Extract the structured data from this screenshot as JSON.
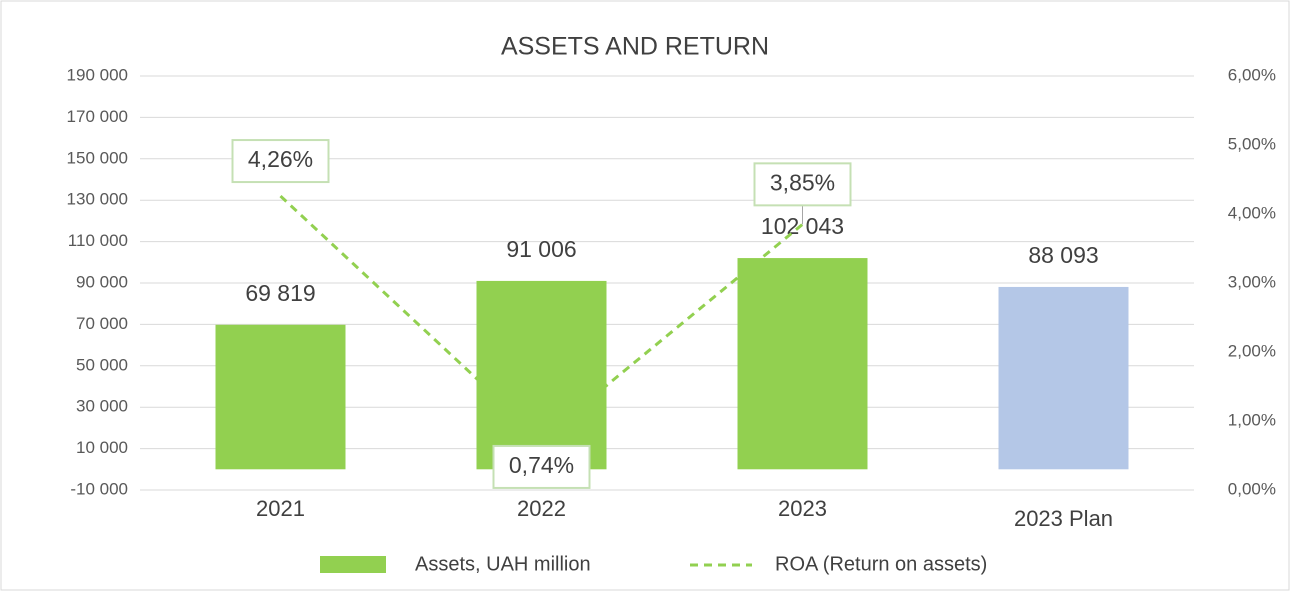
{
  "chart_data": {
    "type": "bar",
    "title": "ASSETS AND RETURN",
    "categories": [
      "2021",
      "2022",
      "2023",
      "2023 Plan"
    ],
    "series": [
      {
        "name": "Assets, UAH million",
        "type": "bar",
        "color": "#92d050",
        "colors": [
          "#92d050",
          "#92d050",
          "#92d050",
          "#b4c7e7"
        ],
        "values": [
          69819,
          91006,
          102043,
          88093
        ],
        "value_labels": [
          "69 819",
          "91 006",
          "102 043",
          "88 093"
        ]
      },
      {
        "name": "ROA (Return on assets)",
        "type": "line",
        "axis": "y2",
        "color": "#92d050",
        "dashed": true,
        "values": [
          4.26,
          0.74,
          3.85,
          null
        ],
        "value_labels": [
          "4,26%",
          "0,74%",
          "3,85%",
          null
        ]
      }
    ],
    "ylim": [
      -10000,
      190000
    ],
    "yticks": [
      {
        "value": -10000,
        "label": "-10 000"
      },
      {
        "value": 10000,
        "label": "10 000"
      },
      {
        "value": 30000,
        "label": "30 000"
      },
      {
        "value": 50000,
        "label": "50 000"
      },
      {
        "value": 70000,
        "label": "70 000"
      },
      {
        "value": 90000,
        "label": "90 000"
      },
      {
        "value": 110000,
        "label": "110 000"
      },
      {
        "value": 130000,
        "label": "130 000"
      },
      {
        "value": 150000,
        "label": "150 000"
      },
      {
        "value": 170000,
        "label": "170 000"
      },
      {
        "value": 190000,
        "label": "190 000"
      }
    ],
    "y2lim": [
      0,
      6
    ],
    "y2ticks": [
      {
        "value": 0,
        "label": "0,00%"
      },
      {
        "value": 1,
        "label": "1,00%"
      },
      {
        "value": 2,
        "label": "2,00%"
      },
      {
        "value": 3,
        "label": "3,00%"
      },
      {
        "value": 4,
        "label": "4,00%"
      },
      {
        "value": 5,
        "label": "5,00%"
      },
      {
        "value": 6,
        "label": "6,00%"
      }
    ],
    "grid": true,
    "legend": "bottom"
  }
}
